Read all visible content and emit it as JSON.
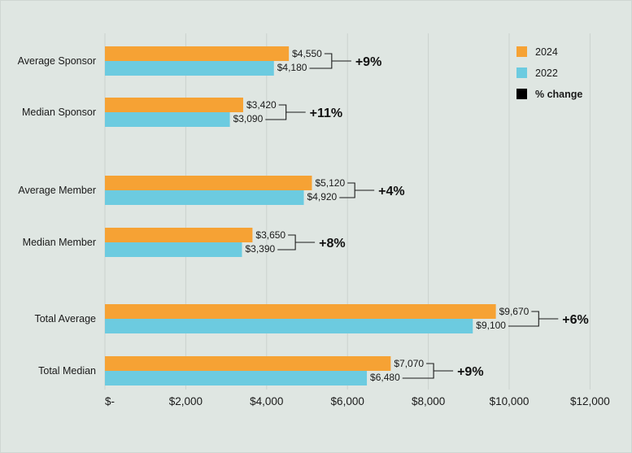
{
  "chart_data": {
    "type": "bar",
    "orientation": "horizontal",
    "categories": [
      "Average Sponsor",
      "Median Sponsor",
      "Average Member",
      "Median Member",
      "Total Average",
      "Total Median"
    ],
    "series": [
      {
        "name": "2024",
        "color": "#f6a234",
        "values": [
          4550,
          3420,
          5120,
          3650,
          9670,
          7070
        ],
        "labels": [
          "$4,550",
          "$3,420",
          "$5,120",
          "$3,650",
          "$9,670",
          "$7,070"
        ]
      },
      {
        "name": "2022",
        "color": "#6ccbe0",
        "values": [
          4180,
          3090,
          4920,
          3390,
          9100,
          6480
        ],
        "labels": [
          "$4,180",
          "$3,090",
          "$4,920",
          "$3,390",
          "$9,100",
          "$6,480"
        ]
      }
    ],
    "pct_change": [
      "+9%",
      "+11%",
      "+4%",
      "+8%",
      "+6%",
      "+9%"
    ],
    "xlim": [
      0,
      12000
    ],
    "x_ticks": [
      0,
      2000,
      4000,
      6000,
      8000,
      10000,
      12000
    ],
    "x_tick_labels": [
      "$-",
      "$2,000",
      "$4,000",
      "$6,000",
      "$8,000",
      "$10,000",
      "$12,000"
    ],
    "legend": [
      {
        "label": "2024",
        "color": "#f6a234"
      },
      {
        "label": "2022",
        "color": "#6ccbe0"
      },
      {
        "label": "% change",
        "color": "#000000"
      }
    ],
    "legend_position": "top-right",
    "grid": true,
    "title": "",
    "xlabel": "",
    "ylabel": ""
  }
}
